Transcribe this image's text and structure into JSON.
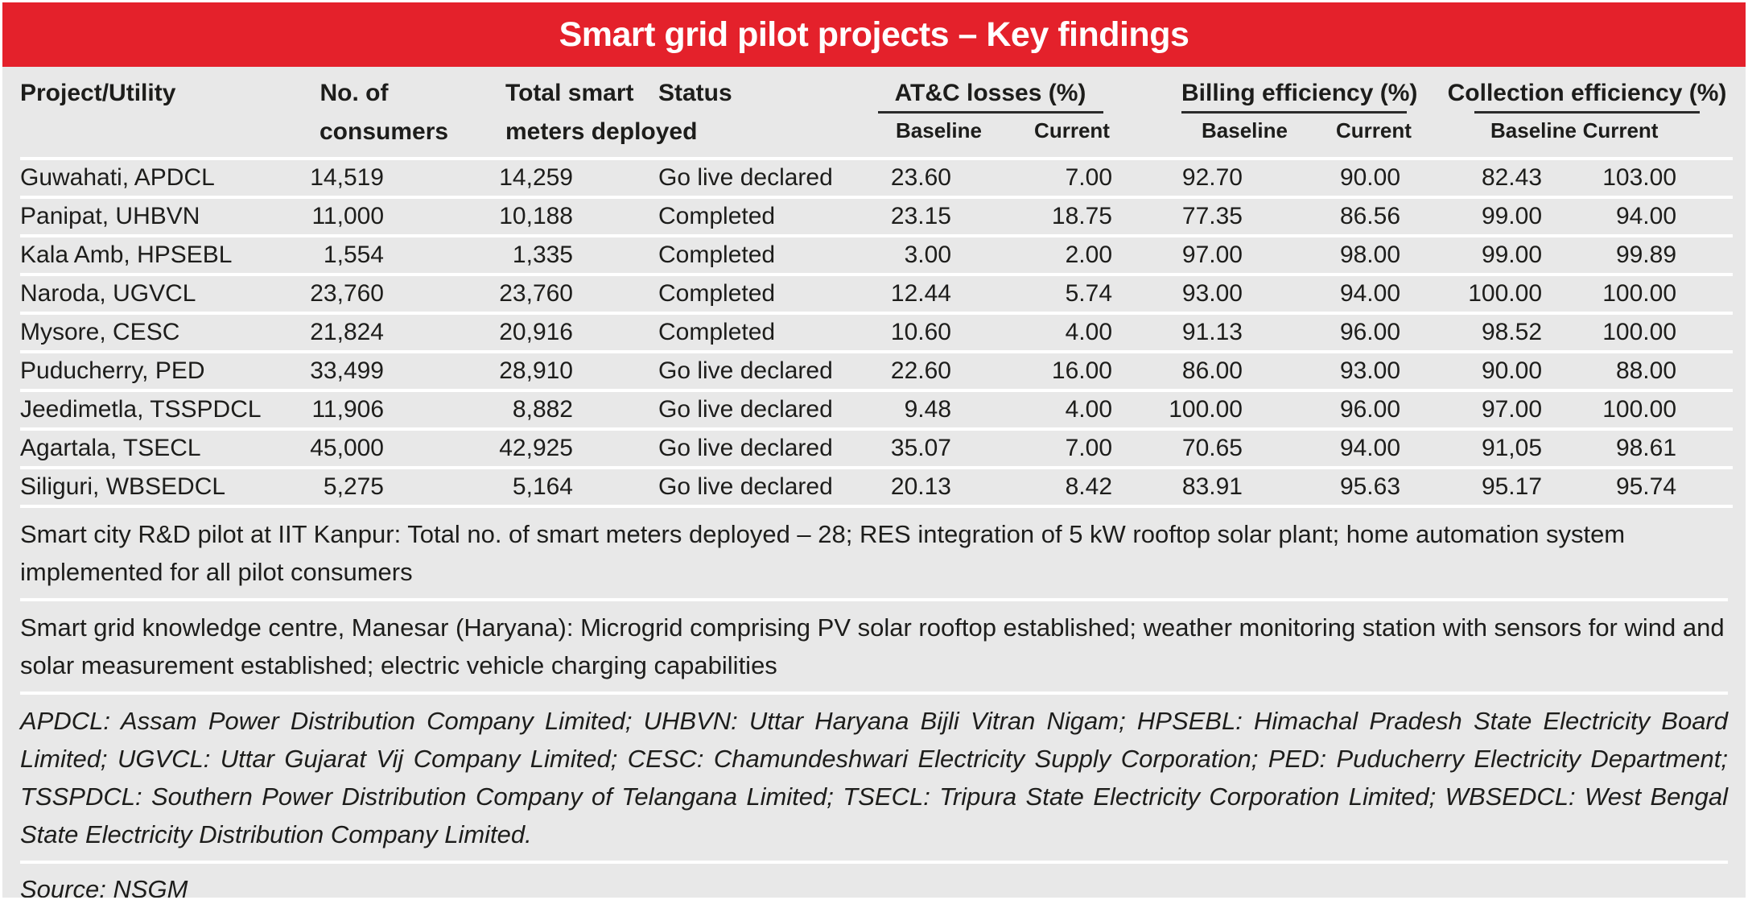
{
  "title": "Smart grid pilot projects – Key findings",
  "colors": {
    "accent_red": "#e4212b",
    "background": "#e8e8e8",
    "separator": "#ffffff",
    "text": "#1d1d1b"
  },
  "table": {
    "header": {
      "project": "Project/Utility",
      "consumers_line1": "No.  of",
      "consumers_line2": "consumers",
      "meters_line1": "Total smart",
      "meters_line2": "meters deployed",
      "status": "Status",
      "groups": [
        {
          "label": "AT&C losses (%)"
        },
        {
          "label": "Billing efficiency (%)"
        },
        {
          "label": "Collection efficiency (%)"
        }
      ],
      "baseline": "Baseline",
      "current": "Current"
    },
    "rows": [
      {
        "project": "Guwahati, APDCL",
        "consumers": "14,519",
        "meters": "14,259",
        "status": "Go live declared",
        "atc_baseline": "23.60",
        "atc_current": "7.00",
        "billing_baseline": "92.70",
        "billing_current": "90.00",
        "collection_baseline": "82.43",
        "collection_current": "103.00"
      },
      {
        "project": "Panipat, UHBVN",
        "consumers": "11,000",
        "meters": "10,188",
        "status": "Completed",
        "atc_baseline": "23.15",
        "atc_current": "18.75",
        "billing_baseline": "77.35",
        "billing_current": "86.56",
        "collection_baseline": "99.00",
        "collection_current": "94.00"
      },
      {
        "project": "Kala Amb, HPSEBL",
        "consumers": "1,554",
        "meters": "1,335",
        "status": "Completed",
        "atc_baseline": "3.00",
        "atc_current": "2.00",
        "billing_baseline": "97.00",
        "billing_current": "98.00",
        "collection_baseline": "99.00",
        "collection_current": "99.89"
      },
      {
        "project": "Naroda, UGVCL",
        "consumers": "23,760",
        "meters": "23,760",
        "status": "Completed",
        "atc_baseline": "12.44",
        "atc_current": "5.74",
        "billing_baseline": "93.00",
        "billing_current": "94.00",
        "collection_baseline": "100.00",
        "collection_current": "100.00"
      },
      {
        "project": "Mysore, CESC",
        "consumers": "21,824",
        "meters": "20,916",
        "status": "Completed",
        "atc_baseline": "10.60",
        "atc_current": "4.00",
        "billing_baseline": "91.13",
        "billing_current": "96.00",
        "collection_baseline": "98.52",
        "collection_current": "100.00"
      },
      {
        "project": "Puducherry, PED",
        "consumers": "33,499",
        "meters": "28,910",
        "status": "Go live declared",
        "atc_baseline": "22.60",
        "atc_current": "16.00",
        "billing_baseline": "86.00",
        "billing_current": "93.00",
        "collection_baseline": "90.00",
        "collection_current": "88.00"
      },
      {
        "project": "Jeedimetla, TSSPDCL",
        "consumers": "11,906",
        "meters": "8,882",
        "status": "Go live declared",
        "atc_baseline": "9.48",
        "atc_current": "4.00",
        "billing_baseline": "100.00",
        "billing_current": "96.00",
        "collection_baseline": "97.00",
        "collection_current": "100.00"
      },
      {
        "project": "Agartala, TSECL",
        "consumers": "45,000",
        "meters": "42,925",
        "status": "Go live declared",
        "atc_baseline": "35.07",
        "atc_current": "7.00",
        "billing_baseline": "70.65",
        "billing_current": "94.00",
        "collection_baseline": "91,05",
        "collection_current": "98.61"
      },
      {
        "project": "Siliguri, WBSEDCL",
        "consumers": "5,275",
        "meters": "5,164",
        "status": "Go live declared",
        "atc_baseline": "20.13",
        "atc_current": "8.42",
        "billing_baseline": "83.91",
        "billing_current": "95.63",
        "collection_baseline": "95.17",
        "collection_current": "95.74"
      }
    ]
  },
  "notes": [
    "Smart city R&D pilot at IIT Kanpur: Total no. of smart meters deployed – 28;  RES integration of 5 kW rooftop solar plant; home automation system implemented for all pilot consumers",
    "Smart grid knowledge centre, Manesar (Haryana): Microgrid comprising PV solar rooftop established; weather monitoring station with sensors for wind and solar measurement established; electric vehicle charging capabilities"
  ],
  "abbreviations": "APDCL: Assam Power Distribution Company Limited; UHBVN: Uttar Haryana Bijli Vitran Nigam; HPSEBL: Himachal Pradesh State Electricity Board Limited; UGVCL: Uttar Gujarat Vij Company Limited; CESC: Chamundeshwari Electricity Supply Corporation; PED: Puducherry Electricity Department; TSSPDCL: Southern Power Distribution Company of Telangana Limited; TSECL: Tripura State Electricity Corporation Limited; WBSEDCL: West Bengal State Electricity Distribution Company Limited.",
  "source": "Source: NSGM"
}
